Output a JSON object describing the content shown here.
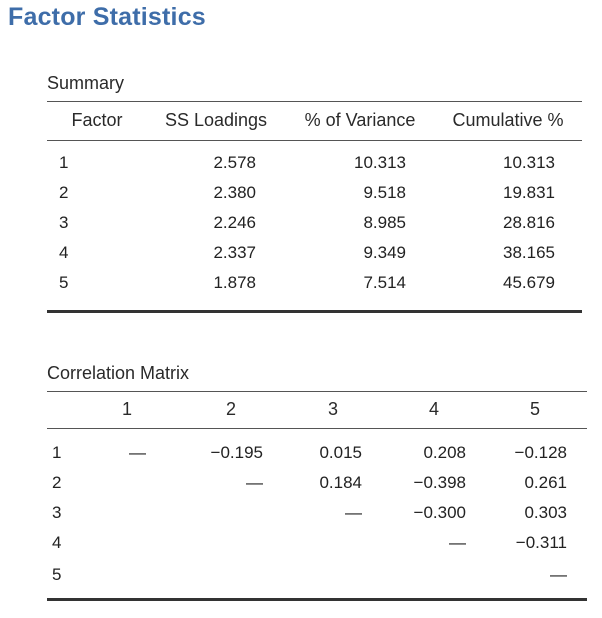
{
  "title": "Factor Statistics",
  "summary": {
    "caption": "Summary",
    "headers": [
      "Factor",
      "SS Loadings",
      "% of Variance",
      "Cumulative %"
    ],
    "rows": [
      {
        "factor": "1",
        "ss": "2.578",
        "var": "10.313",
        "cum": "10.313"
      },
      {
        "factor": "2",
        "ss": "2.380",
        "var": "9.518",
        "cum": "19.831"
      },
      {
        "factor": "3",
        "ss": "2.246",
        "var": "8.985",
        "cum": "28.816"
      },
      {
        "factor": "4",
        "ss": "2.337",
        "var": "9.349",
        "cum": "38.165"
      },
      {
        "factor": "5",
        "ss": "1.878",
        "var": "7.514",
        "cum": "45.679"
      }
    ]
  },
  "correlation": {
    "caption": "Correlation Matrix",
    "col_headers": [
      "1",
      "2",
      "3",
      "4",
      "5"
    ],
    "row_labels": [
      "1",
      "2",
      "3",
      "4",
      "5"
    ],
    "values": [
      [
        "—",
        "-0.195",
        "0.015",
        "0.208",
        "-0.128"
      ],
      [
        "",
        "—",
        "0.184",
        "-0.398",
        "0.261"
      ],
      [
        "",
        "",
        "—",
        "-0.300",
        "0.303"
      ],
      [
        "",
        "",
        "",
        "—",
        "-0.311"
      ],
      [
        "",
        "",
        "",
        "",
        "—"
      ]
    ]
  }
}
